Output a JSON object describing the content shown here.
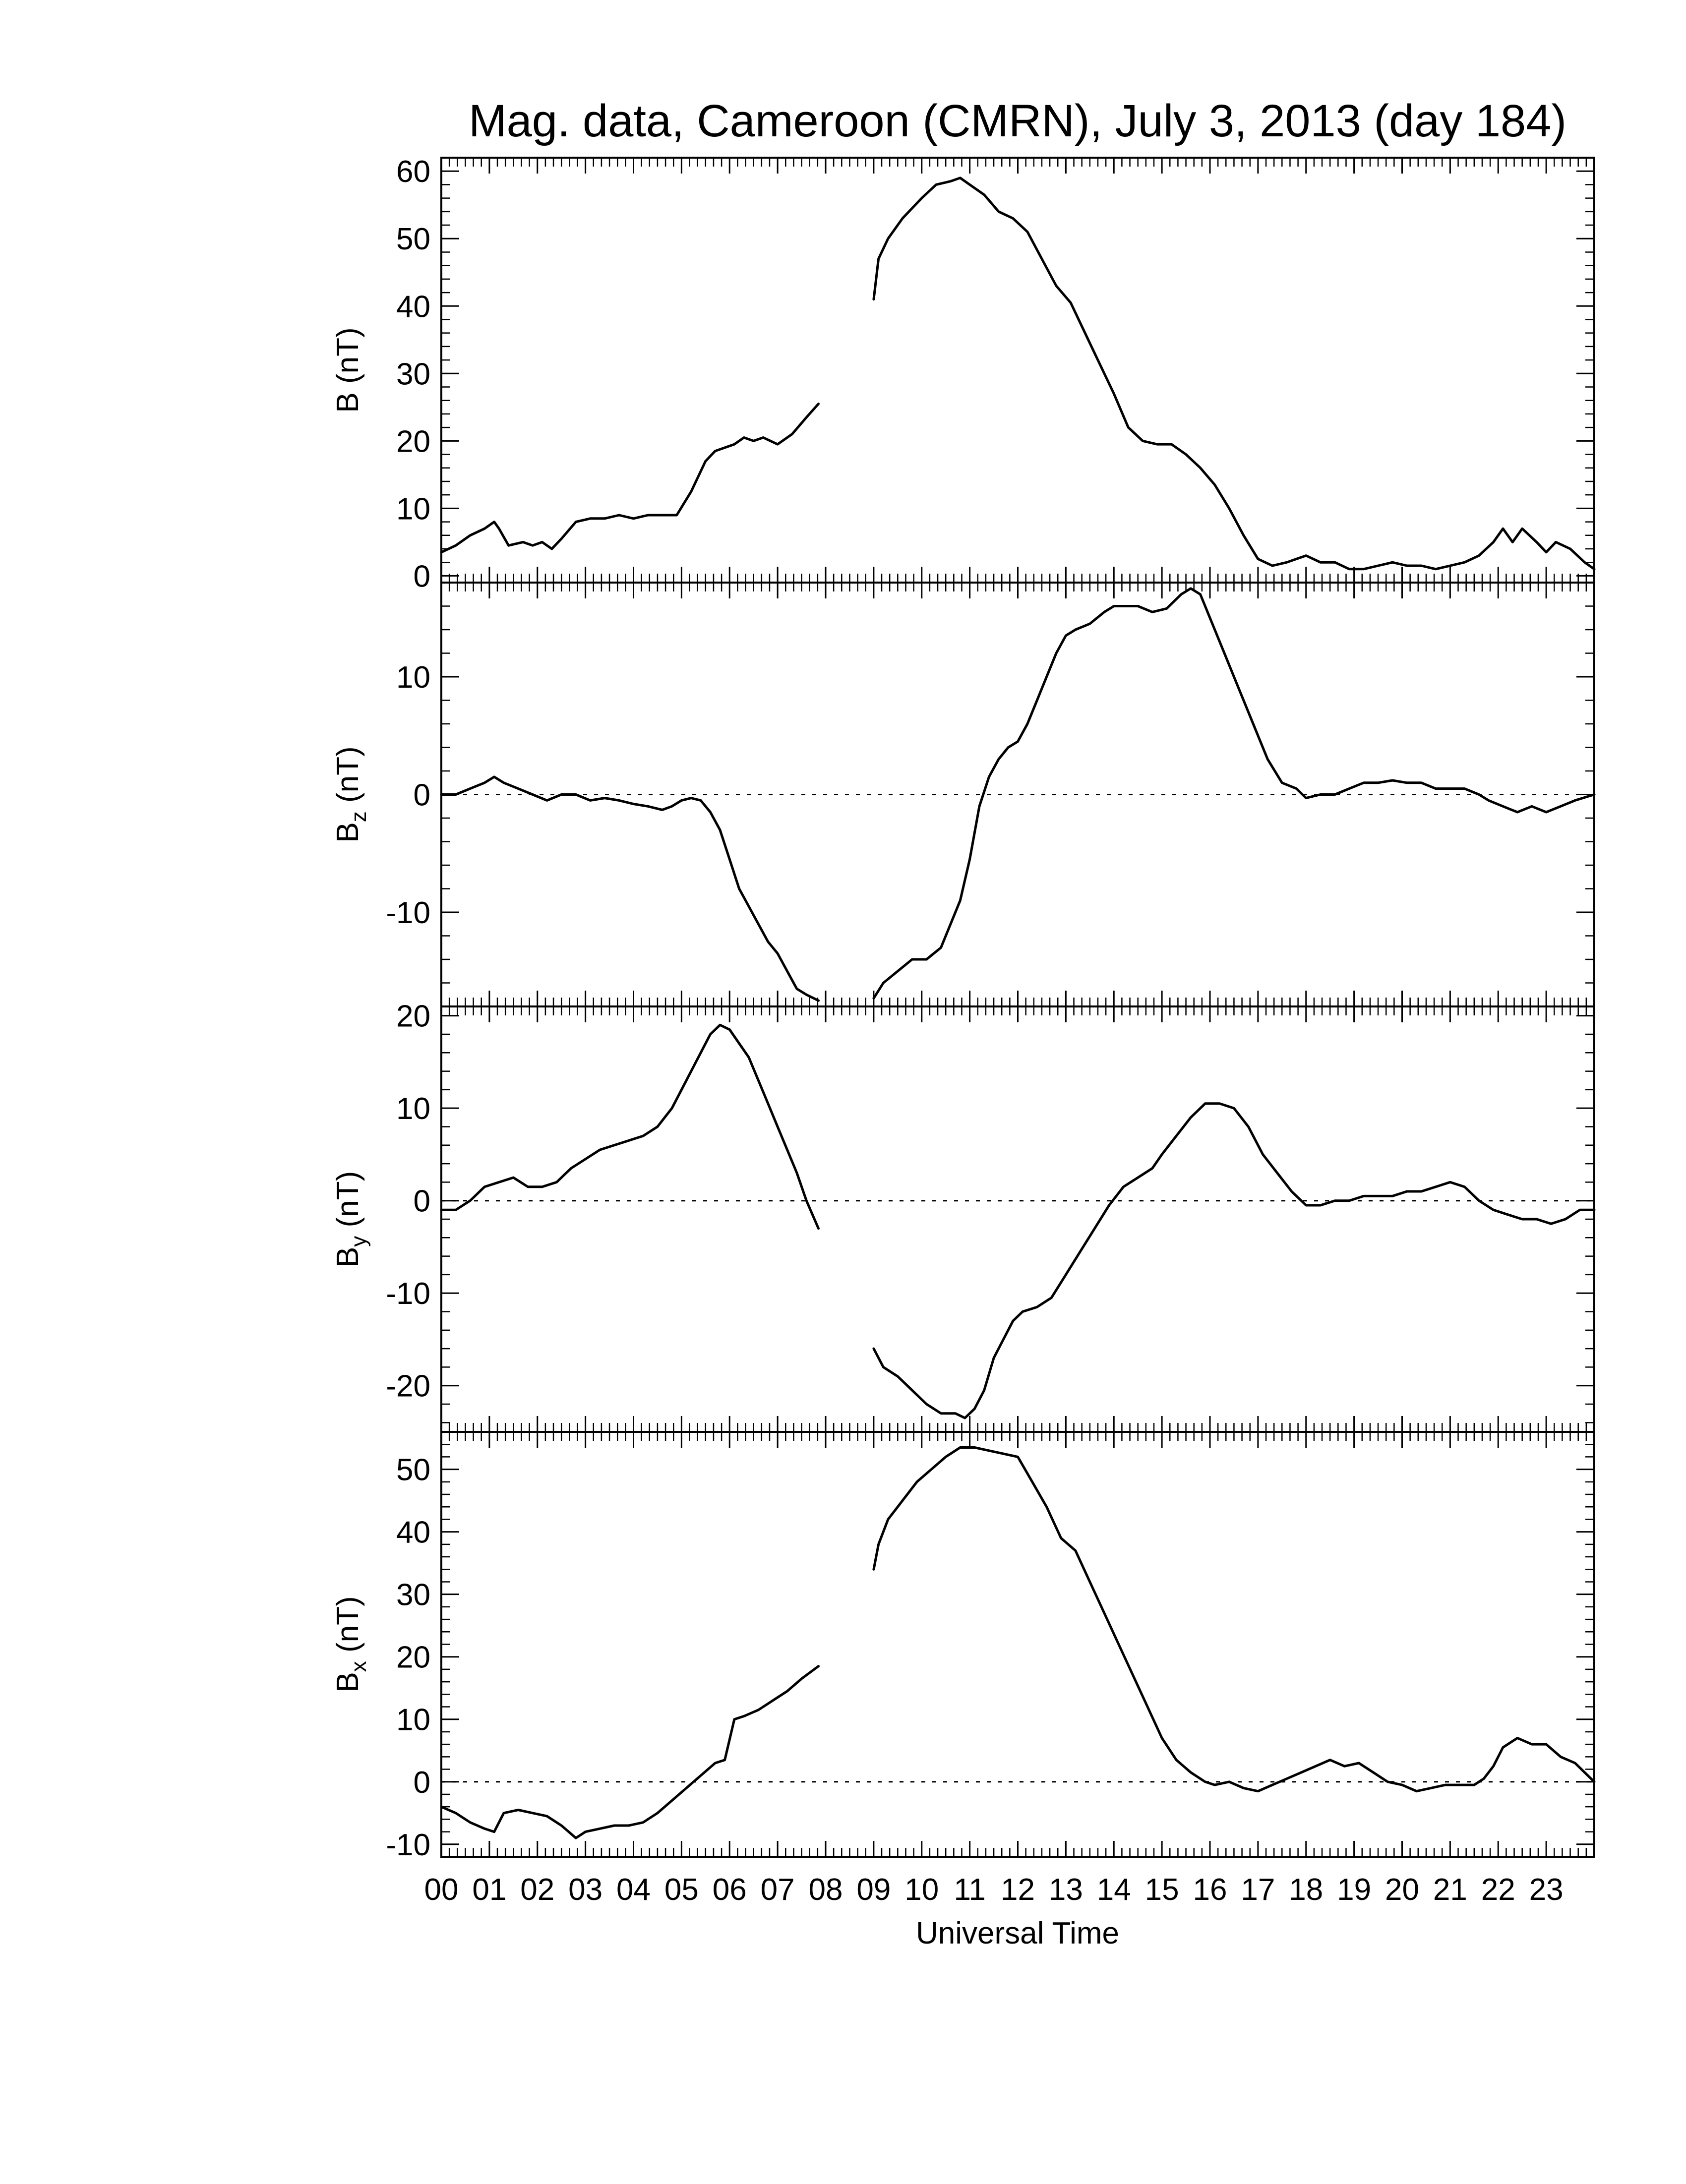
{
  "chart_data": {
    "type": "line",
    "title": "Mag. data, Cameroon (CMRN), July 3, 2013 (day 184)",
    "xlabel": "Universal Time",
    "x_ticks": [
      "00",
      "01",
      "02",
      "03",
      "04",
      "05",
      "06",
      "07",
      "08",
      "09",
      "10",
      "11",
      "12",
      "13",
      "14",
      "15",
      "16",
      "17",
      "18",
      "19",
      "20",
      "21",
      "22",
      "23"
    ],
    "xlim": [
      0,
      24
    ],
    "data_gap_hours": [
      7.85,
      9.0
    ],
    "panels": [
      {
        "key": "B",
        "ylabel": "B (nT)",
        "ylabel_main": "B",
        "ylabel_sub": "",
        "ylabel_unit": " (nT)",
        "ylim": [
          -1,
          62
        ],
        "yticks": [
          0,
          10,
          20,
          30,
          40,
          50,
          60
        ],
        "zero_line": false,
        "x": [
          0.0,
          0.3,
          0.6,
          0.9,
          1.1,
          1.2,
          1.4,
          1.7,
          1.9,
          2.1,
          2.3,
          2.5,
          2.8,
          3.1,
          3.4,
          3.7,
          4.0,
          4.3,
          4.6,
          4.9,
          5.2,
          5.5,
          5.7,
          5.9,
          6.1,
          6.3,
          6.5,
          6.7,
          7.0,
          7.3,
          7.6,
          7.85,
          9.0,
          9.1,
          9.3,
          9.6,
          10.0,
          10.3,
          10.6,
          10.8,
          11.0,
          11.3,
          11.6,
          11.9,
          12.2,
          12.5,
          12.8,
          13.1,
          13.4,
          13.7,
          14.0,
          14.3,
          14.6,
          14.9,
          15.2,
          15.5,
          15.8,
          16.1,
          16.4,
          16.7,
          17.0,
          17.3,
          17.6,
          17.8,
          18.0,
          18.3,
          18.6,
          18.9,
          19.2,
          19.5,
          19.8,
          20.1,
          20.4,
          20.7,
          21.0,
          21.3,
          21.6,
          21.9,
          22.1,
          22.3,
          22.5,
          22.8,
          23.0,
          23.2,
          23.5,
          23.8,
          24.0
        ],
        "y": [
          3.5,
          4.5,
          6.0,
          7.0,
          8.0,
          7.0,
          4.5,
          5.0,
          4.5,
          5.0,
          4.0,
          5.5,
          8.0,
          8.5,
          8.5,
          9.0,
          8.5,
          9.0,
          9.0,
          9.0,
          12.5,
          17.0,
          18.5,
          19.0,
          19.5,
          20.5,
          20.0,
          20.5,
          19.5,
          21.0,
          23.5,
          25.5,
          41.0,
          47.0,
          50.0,
          53.0,
          56.0,
          58.0,
          58.5,
          59.0,
          58.0,
          56.5,
          54.0,
          53.0,
          51.0,
          47.0,
          43.0,
          40.5,
          36.0,
          31.5,
          27.0,
          22.0,
          20.0,
          19.5,
          19.5,
          18.0,
          16.0,
          13.5,
          10.0,
          6.0,
          2.5,
          1.5,
          2.0,
          2.5,
          3.0,
          2.0,
          2.0,
          1.0,
          1.0,
          1.5,
          2.0,
          1.5,
          1.5,
          1.0,
          1.5,
          2.0,
          3.0,
          5.0,
          7.0,
          5.0,
          7.0,
          5.0,
          3.5,
          5.0,
          4.0,
          2.0,
          1.0
        ]
      },
      {
        "key": "Bz",
        "ylabel": "Bz (nT)",
        "ylabel_main": "B",
        "ylabel_sub": "z",
        "ylabel_unit": " (nT)",
        "ylim": [
          -18,
          18
        ],
        "yticks": [
          -10,
          0,
          10
        ],
        "zero_line": true,
        "x": [
          0.0,
          0.3,
          0.6,
          0.9,
          1.1,
          1.3,
          1.6,
          1.9,
          2.2,
          2.5,
          2.8,
          3.1,
          3.4,
          3.7,
          4.0,
          4.3,
          4.6,
          4.8,
          5.0,
          5.2,
          5.4,
          5.6,
          5.8,
          6.0,
          6.2,
          6.4,
          6.6,
          6.8,
          7.0,
          7.2,
          7.4,
          7.6,
          7.85,
          9.0,
          9.2,
          9.5,
          9.8,
          10.1,
          10.4,
          10.6,
          10.8,
          11.0,
          11.2,
          11.4,
          11.6,
          11.8,
          12.0,
          12.2,
          12.4,
          12.6,
          12.8,
          13.0,
          13.2,
          13.5,
          13.8,
          14.0,
          14.2,
          14.5,
          14.8,
          15.1,
          15.4,
          15.6,
          15.8,
          16.0,
          16.3,
          16.6,
          16.9,
          17.2,
          17.5,
          17.8,
          18.0,
          18.3,
          18.6,
          18.9,
          19.2,
          19.5,
          19.8,
          20.1,
          20.4,
          20.7,
          21.0,
          21.3,
          21.6,
          21.8,
          22.1,
          22.4,
          22.7,
          23.0,
          23.3,
          23.6,
          24.0
        ],
        "y": [
          0.0,
          0.0,
          0.5,
          1.0,
          1.5,
          1.0,
          0.5,
          0.0,
          -0.5,
          0.0,
          0.0,
          -0.5,
          -0.3,
          -0.5,
          -0.8,
          -1.0,
          -1.3,
          -1.0,
          -0.5,
          -0.3,
          -0.5,
          -1.5,
          -3.0,
          -5.5,
          -8.0,
          -9.5,
          -11.0,
          -12.5,
          -13.5,
          -15.0,
          -16.5,
          -17.0,
          -17.5,
          -17.3,
          -16.0,
          -15.0,
          -14.0,
          -14.0,
          -13.0,
          -11.0,
          -9.0,
          -5.5,
          -1.0,
          1.5,
          3.0,
          4.0,
          4.5,
          6.0,
          8.0,
          10.0,
          12.0,
          13.5,
          14.0,
          14.5,
          15.5,
          16.0,
          16.0,
          16.0,
          15.5,
          15.8,
          17.0,
          17.5,
          17.0,
          15.0,
          12.0,
          9.0,
          6.0,
          3.0,
          1.0,
          0.5,
          -0.3,
          0.0,
          0.0,
          0.5,
          1.0,
          1.0,
          1.2,
          1.0,
          1.0,
          0.5,
          0.5,
          0.5,
          0.0,
          -0.5,
          -1.0,
          -1.5,
          -1.0,
          -1.5,
          -1.0,
          -0.5,
          0.0
        ]
      },
      {
        "key": "By",
        "ylabel": "By (nT)",
        "ylabel_main": "B",
        "ylabel_sub": "y",
        "ylabel_unit": " (nT)",
        "ylim": [
          -25,
          21
        ],
        "yticks": [
          -20,
          -10,
          0,
          10,
          20
        ],
        "zero_line": true,
        "x": [
          0.0,
          0.3,
          0.6,
          0.9,
          1.2,
          1.5,
          1.8,
          2.1,
          2.4,
          2.7,
          3.0,
          3.3,
          3.6,
          3.9,
          4.2,
          4.5,
          4.8,
          5.1,
          5.4,
          5.6,
          5.8,
          6.0,
          6.2,
          6.4,
          6.6,
          6.8,
          7.0,
          7.2,
          7.4,
          7.6,
          7.85,
          9.0,
          9.2,
          9.5,
          9.8,
          10.1,
          10.4,
          10.7,
          10.9,
          11.1,
          11.3,
          11.5,
          11.7,
          11.9,
          12.1,
          12.4,
          12.7,
          13.0,
          13.3,
          13.6,
          13.9,
          14.2,
          14.5,
          14.8,
          15.0,
          15.3,
          15.6,
          15.9,
          16.2,
          16.5,
          16.8,
          17.1,
          17.4,
          17.7,
          18.0,
          18.3,
          18.6,
          18.9,
          19.2,
          19.5,
          19.8,
          20.1,
          20.4,
          20.7,
          21.0,
          21.3,
          21.6,
          21.9,
          22.2,
          22.5,
          22.8,
          23.1,
          23.4,
          23.7,
          24.0
        ],
        "y": [
          -1.0,
          -1.0,
          0.0,
          1.5,
          2.0,
          2.5,
          1.5,
          1.5,
          2.0,
          3.5,
          4.5,
          5.5,
          6.0,
          6.5,
          7.0,
          8.0,
          10.0,
          13.0,
          16.0,
          18.0,
          19.0,
          18.5,
          17.0,
          15.5,
          13.0,
          10.5,
          8.0,
          5.5,
          3.0,
          0.0,
          -3.0,
          -16.0,
          -18.0,
          -19.0,
          -20.5,
          -22.0,
          -23.0,
          -23.0,
          -23.5,
          -22.5,
          -20.5,
          -17.0,
          -15.0,
          -13.0,
          -12.0,
          -11.5,
          -10.5,
          -8.0,
          -5.5,
          -3.0,
          -0.5,
          1.5,
          2.5,
          3.5,
          5.0,
          7.0,
          9.0,
          10.5,
          10.5,
          10.0,
          8.0,
          5.0,
          3.0,
          1.0,
          -0.5,
          -0.5,
          0.0,
          0.0,
          0.5,
          0.5,
          0.5,
          1.0,
          1.0,
          1.5,
          2.0,
          1.5,
          0.0,
          -1.0,
          -1.5,
          -2.0,
          -2.0,
          -2.5,
          -2.0,
          -1.0,
          -1.0
        ]
      },
      {
        "key": "Bx",
        "ylabel": "Bx (nT)",
        "ylabel_main": "B",
        "ylabel_sub": "x",
        "ylabel_unit": " (nT)",
        "ylim": [
          -12,
          56
        ],
        "yticks": [
          -10,
          0,
          10,
          20,
          30,
          40,
          50
        ],
        "zero_line": true,
        "x": [
          0.0,
          0.3,
          0.6,
          0.9,
          1.1,
          1.3,
          1.6,
          1.9,
          2.2,
          2.5,
          2.8,
          3.0,
          3.3,
          3.6,
          3.9,
          4.2,
          4.5,
          4.8,
          5.1,
          5.4,
          5.7,
          5.9,
          6.1,
          6.3,
          6.6,
          6.9,
          7.2,
          7.5,
          7.85,
          9.0,
          9.1,
          9.3,
          9.6,
          9.9,
          10.2,
          10.5,
          10.8,
          11.1,
          11.4,
          11.7,
          12.0,
          12.3,
          12.6,
          12.9,
          13.2,
          13.5,
          13.8,
          14.1,
          14.4,
          14.7,
          15.0,
          15.3,
          15.6,
          15.9,
          16.1,
          16.4,
          16.7,
          17.0,
          17.3,
          17.6,
          17.9,
          18.2,
          18.5,
          18.8,
          19.1,
          19.4,
          19.7,
          20.0,
          20.3,
          20.6,
          20.9,
          21.2,
          21.5,
          21.7,
          21.9,
          22.1,
          22.4,
          22.7,
          23.0,
          23.3,
          23.6,
          24.0
        ],
        "y": [
          -4.0,
          -5.0,
          -6.5,
          -7.5,
          -8.0,
          -5.0,
          -4.5,
          -5.0,
          -5.5,
          -7.0,
          -9.0,
          -8.0,
          -7.5,
          -7.0,
          -7.0,
          -6.5,
          -5.0,
          -3.0,
          -1.0,
          1.0,
          3.0,
          3.5,
          10.0,
          10.5,
          11.5,
          13.0,
          14.5,
          16.5,
          18.5,
          34.0,
          38.0,
          42.0,
          45.0,
          48.0,
          50.0,
          52.0,
          53.5,
          53.5,
          53.0,
          52.5,
          52.0,
          48.0,
          44.0,
          39.0,
          37.0,
          32.0,
          27.0,
          22.0,
          17.0,
          12.0,
          7.0,
          3.5,
          1.5,
          0.0,
          -0.5,
          0.0,
          -1.0,
          -1.5,
          -0.5,
          0.5,
          1.5,
          2.5,
          3.5,
          2.5,
          3.0,
          1.5,
          0.0,
          -0.5,
          -1.5,
          -1.0,
          -0.5,
          -0.5,
          -0.5,
          0.5,
          2.5,
          5.5,
          7.0,
          6.0,
          6.0,
          4.0,
          3.0,
          0.0
        ]
      }
    ]
  }
}
